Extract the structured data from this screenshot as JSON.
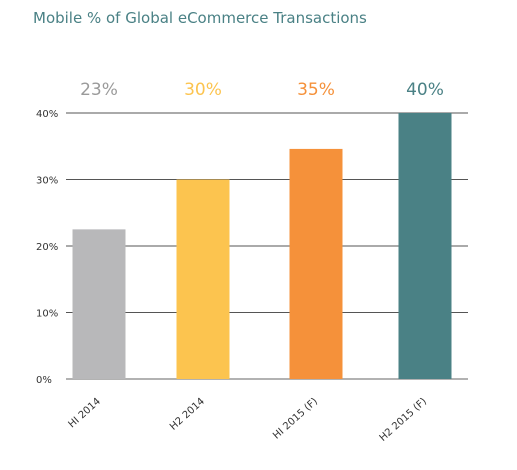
{
  "chart_data": {
    "type": "bar",
    "title": "Mobile % of Global eCommerce Transactions",
    "xlabel": "",
    "ylabel": "",
    "categories": [
      "HI 2014",
      "H2 2014",
      "HI 2015 (F)",
      "H2 2015 (F)"
    ],
    "values": [
      22.5,
      30,
      34.6,
      40
    ],
    "value_labels": [
      "23%",
      "30%",
      "35%",
      "40%"
    ],
    "colors": [
      "#b8b8ba",
      "#fcc44f",
      "#f5913a",
      "#4a8185"
    ],
    "label_colors": [
      "#9a9a9a",
      "#fcc44f",
      "#f5913a",
      "#4a8185"
    ],
    "ylim": [
      0,
      40
    ],
    "yticks": [
      0,
      10,
      20,
      30,
      40
    ],
    "ytick_labels": [
      "0%",
      "10%",
      "20%",
      "30%",
      "40%"
    ],
    "grid": true
  }
}
